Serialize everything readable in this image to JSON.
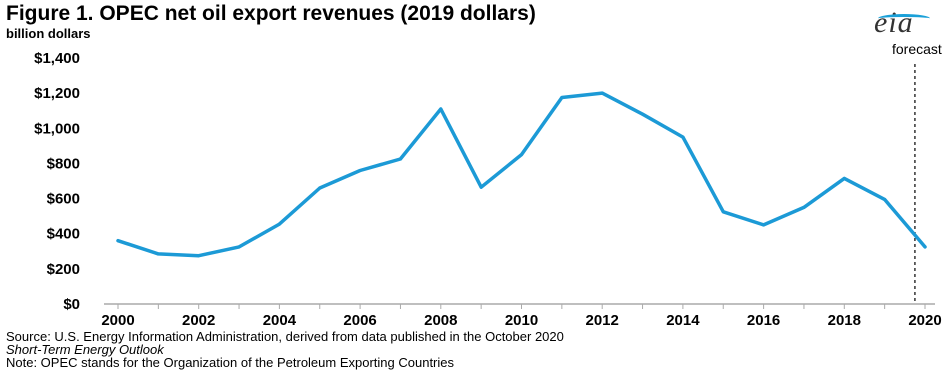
{
  "title": "Figure 1. OPEC net oil export revenues (2019 dollars)",
  "units": "billion dollars",
  "logo_text": "eia",
  "notes": {
    "source": "Source: U.S. Energy Information Administration, derived from data published in the October 2020",
    "source_italic": "Short-Term Energy Outlook",
    "note": "Note: OPEC stands for the Organization of the Petroleum Exporting Countries"
  },
  "colors": {
    "line": "#1c9ad6",
    "axis": "#aaaaaa"
  },
  "chart_data": {
    "type": "line",
    "title": "Figure 1. OPEC net oil export revenues (2019 dollars)",
    "ylabel": "billion dollars",
    "xlabel": "",
    "x": [
      2000,
      2001,
      2002,
      2003,
      2004,
      2005,
      2006,
      2007,
      2008,
      2009,
      2010,
      2011,
      2012,
      2013,
      2014,
      2015,
      2016,
      2017,
      2018,
      2019,
      2020
    ],
    "values": [
      360,
      285,
      275,
      325,
      455,
      660,
      760,
      825,
      1110,
      665,
      850,
      1175,
      1200,
      1080,
      950,
      525,
      450,
      550,
      715,
      595,
      325
    ],
    "xlim": [
      2000,
      2020
    ],
    "ylim": [
      0,
      1400
    ],
    "x_ticks": [
      "2000",
      "2002",
      "2004",
      "2006",
      "2008",
      "2010",
      "2012",
      "2014",
      "2016",
      "2018",
      "2020"
    ],
    "y_ticks": [
      "$0",
      "$200",
      "$400",
      "$600",
      "$800",
      "$1,000",
      "$1,200",
      "$1,400"
    ],
    "grid": false,
    "forecast_start": 2019.75,
    "forecast_label": "forecast"
  }
}
